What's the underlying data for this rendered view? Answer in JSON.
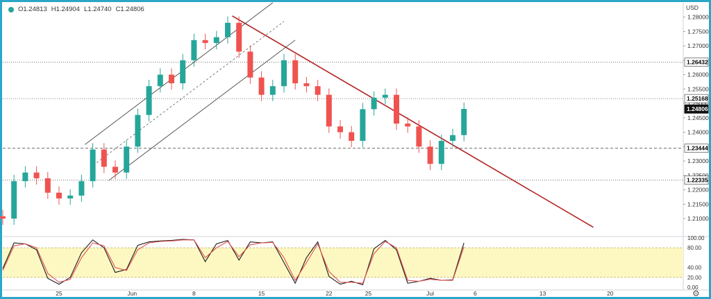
{
  "ohlc": {
    "open": "O1.24813",
    "high": "H1.24904",
    "low": "L1.24740",
    "close": "C1.24806"
  },
  "currency": "USD",
  "colors": {
    "up": "#26a69a",
    "down": "#ef5350",
    "trendline": "#b22222",
    "channel": "#444444",
    "stoch_k": "#1a1a1a",
    "stoch_d": "#e05050",
    "stoch_band": "#fdf8c2",
    "frame": "#2aa6c7"
  },
  "chart_data": [
    {
      "type": "candlestick",
      "timeframe": "4h",
      "ylim": [
        1.204,
        1.284
      ],
      "price_ticks": [
        "1.28000",
        "1.27500",
        "1.27000",
        "1.26500",
        "1.26000",
        "1.25500",
        "1.25000",
        "1.24500",
        "1.24000",
        "1.23500",
        "1.23000",
        "1.22500",
        "1.22000",
        "1.21500",
        "1.21000"
      ],
      "x_ticks": [
        "25",
        "Jun",
        "8",
        "15",
        "22",
        "25",
        "Jul",
        "6",
        "13",
        "20"
      ],
      "x_tick_values": [
        5,
        11.5,
        17,
        23,
        29,
        32.5,
        38,
        42,
        48,
        54
      ],
      "levels": [
        {
          "price": 1.26432,
          "label": "1.26432",
          "style": "dotted"
        },
        {
          "price": 1.25168,
          "label": "1.25168",
          "style": "dotted"
        },
        {
          "price": 1.23444,
          "label": "1.23444",
          "style": "dashed"
        },
        {
          "price": 1.22335,
          "label": "1.22335",
          "style": "dotted"
        }
      ],
      "last_price": {
        "price": 1.24806,
        "label": "1.24806"
      },
      "series": [
        {
          "name": "price",
          "points": [
            [
              0,
              1.21
            ],
            [
              1,
              1.223
            ],
            [
              2,
              1.226
            ],
            [
              3,
              1.224
            ],
            [
              4,
              1.219
            ],
            [
              5,
              1.217
            ],
            [
              6,
              1.218
            ],
            [
              7,
              1.223
            ],
            [
              8,
              1.234
            ],
            [
              9,
              1.228
            ],
            [
              10,
              1.226
            ],
            [
              11,
              1.235
            ],
            [
              12,
              1.246
            ],
            [
              13,
              1.256
            ],
            [
              14,
              1.26
            ],
            [
              15,
              1.257
            ],
            [
              16,
              1.265
            ],
            [
              17,
              1.272
            ],
            [
              18,
              1.271
            ],
            [
              19,
              1.273
            ],
            [
              20,
              1.278
            ],
            [
              21,
              1.268
            ],
            [
              22,
              1.259
            ],
            [
              23,
              1.253
            ],
            [
              24,
              1.256
            ],
            [
              25,
              1.265
            ],
            [
              26,
              1.257
            ],
            [
              27,
              1.256
            ],
            [
              28,
              1.253
            ],
            [
              29,
              1.242
            ],
            [
              30,
              1.24
            ],
            [
              31,
              1.237
            ],
            [
              32,
              1.248
            ],
            [
              33,
              1.252
            ],
            [
              34,
              1.253
            ],
            [
              35,
              1.243
            ],
            [
              36,
              1.242
            ],
            [
              37,
              1.235
            ],
            [
              38,
              1.229
            ],
            [
              39,
              1.237
            ],
            [
              40,
              1.239
            ],
            [
              41,
              1.2481
            ]
          ]
        }
      ],
      "drawings": {
        "trendline": [
          [
            20.4,
            1.2804
          ],
          [
            52.5,
            1.207
          ]
        ],
        "channel_upper": [
          [
            7.3,
            1.2357
          ],
          [
            24.0,
            1.285
          ]
        ],
        "channel_lower": [
          [
            9.4,
            1.2232
          ],
          [
            26.0,
            1.272
          ]
        ],
        "channel_mid": [
          [
            8.35,
            1.2294
          ],
          [
            25.0,
            1.2785
          ]
        ]
      }
    },
    {
      "type": "line",
      "name": "stochastic",
      "ylim": [
        0,
        100
      ],
      "y_ticks": [
        "100.00",
        "80.00",
        "40.00",
        "20.00",
        "0.00"
      ],
      "band": [
        20,
        80
      ],
      "series": [
        {
          "name": "k",
          "values": [
            38,
            90,
            88,
            76,
            18,
            6,
            20,
            70,
            96,
            80,
            30,
            36,
            85,
            92,
            94,
            95,
            97,
            96,
            52,
            88,
            95,
            55,
            92,
            90,
            92,
            50,
            8,
            60,
            92,
            22,
            6,
            12,
            5,
            78,
            95,
            76,
            8,
            12,
            18,
            14,
            15,
            90
          ]
        },
        {
          "name": "d",
          "values": [
            34,
            84,
            88,
            80,
            28,
            10,
            16,
            60,
            90,
            84,
            40,
            34,
            76,
            90,
            93,
            94,
            96,
            96,
            60,
            80,
            93,
            62,
            86,
            90,
            91,
            60,
            14,
            50,
            88,
            32,
            10,
            10,
            8,
            68,
            93,
            80,
            14,
            12,
            16,
            14,
            14,
            82
          ]
        }
      ]
    }
  ]
}
